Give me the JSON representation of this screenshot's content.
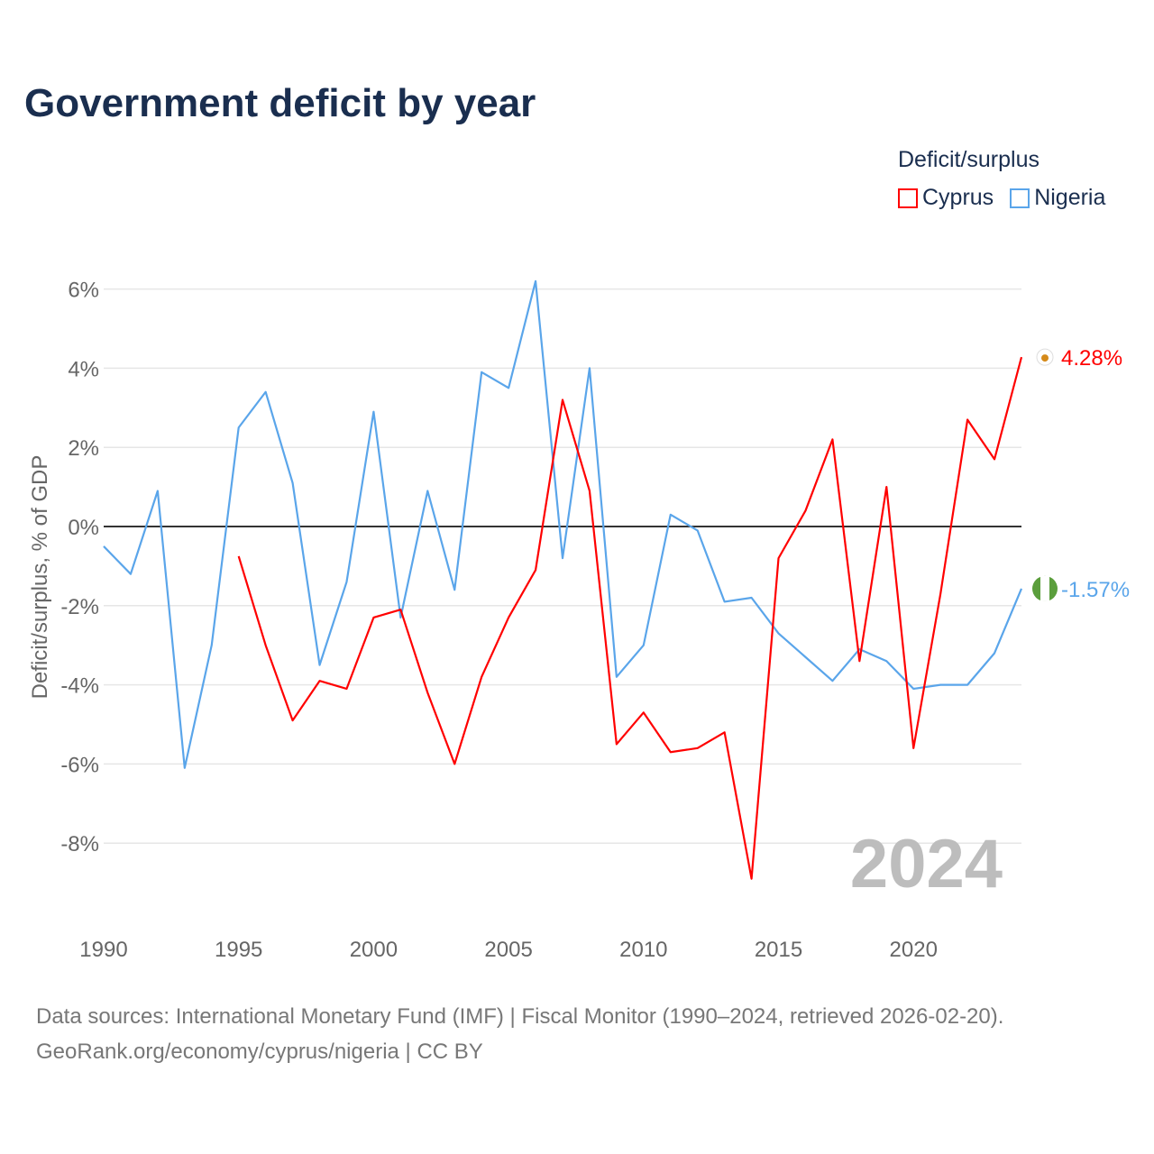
{
  "title": "Government deficit by year",
  "legend": {
    "title": "Deficit/surplus",
    "items": [
      {
        "label": "Cyprus",
        "color": "#ff0000"
      },
      {
        "label": "Nigeria",
        "color": "#5aa5ea"
      }
    ]
  },
  "source": {
    "line1": "Data sources: International Monetary Fund (IMF) | Fiscal Monitor (1990–2024, retrieved 2026-02-20).",
    "line2": "GeoRank.org/economy/cyprus/nigeria | CC BY"
  },
  "chart_data": {
    "type": "line",
    "title": "Government deficit by year",
    "xlabel": "",
    "ylabel": "Deficit/surplus, % of GDP",
    "xlim": [
      1990,
      2024
    ],
    "ylim": [
      -10,
      6.5
    ],
    "yticks": [
      6,
      4,
      2,
      0,
      -2,
      -4,
      -6,
      -8
    ],
    "ytick_labels": [
      "6%",
      "4%",
      "2%",
      "0%",
      "-2%",
      "-4%",
      "-6%",
      "-8%"
    ],
    "xticks": [
      1990,
      1995,
      2000,
      2005,
      2010,
      2015,
      2020
    ],
    "xtick_labels": [
      "1990",
      "1995",
      "2000",
      "2005",
      "2010",
      "2015",
      "2020"
    ],
    "watermark_year": "2024",
    "grid": true,
    "legend_position": "top-right",
    "series": [
      {
        "name": "Cyprus",
        "color": "#ff0000",
        "end_label": "4.28%",
        "x": [
          1995,
          1996,
          1997,
          1998,
          1999,
          2000,
          2001,
          2002,
          2003,
          2004,
          2005,
          2006,
          2007,
          2008,
          2009,
          2010,
          2011,
          2012,
          2013,
          2014,
          2015,
          2016,
          2017,
          2018,
          2019,
          2020,
          2021,
          2022,
          2023,
          2024
        ],
        "values": [
          -0.75,
          -3.0,
          -4.9,
          -3.9,
          -4.1,
          -2.3,
          -2.1,
          -4.2,
          -6.0,
          -3.8,
          -2.3,
          -1.1,
          3.2,
          0.9,
          -5.5,
          -4.7,
          -5.7,
          -5.6,
          -5.2,
          -8.9,
          -0.8,
          0.4,
          2.2,
          -3.4,
          1.0,
          -5.6,
          -1.7,
          2.7,
          1.7,
          4.28
        ]
      },
      {
        "name": "Nigeria",
        "color": "#5aa5ea",
        "end_label": "-1.57%",
        "x": [
          1990,
          1991,
          1992,
          1993,
          1994,
          1995,
          1996,
          1997,
          1998,
          1999,
          2000,
          2001,
          2002,
          2003,
          2004,
          2005,
          2006,
          2007,
          2008,
          2009,
          2010,
          2011,
          2012,
          2013,
          2014,
          2015,
          2016,
          2017,
          2018,
          2019,
          2020,
          2021,
          2022,
          2023,
          2024
        ],
        "values": [
          -0.5,
          -1.2,
          0.9,
          -6.1,
          -3.0,
          2.5,
          3.4,
          1.1,
          -3.5,
          -1.4,
          2.9,
          -2.3,
          0.9,
          -1.6,
          3.9,
          3.5,
          6.2,
          -0.8,
          4.0,
          -3.8,
          -3.0,
          0.3,
          -0.1,
          -1.9,
          -1.8,
          -2.7,
          -3.3,
          -3.9,
          -3.1,
          -3.4,
          -4.1,
          -4.0,
          -4.0,
          -3.2,
          -1.57
        ]
      }
    ]
  }
}
